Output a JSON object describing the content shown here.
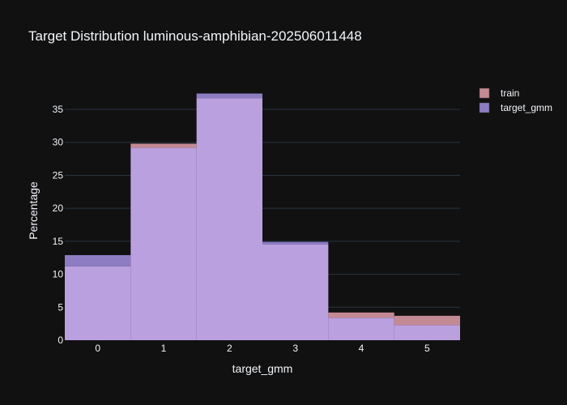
{
  "chart_data": {
    "type": "bar",
    "title": "Target Distribution luminous-amphibian-202506011448",
    "xlabel": "target_gmm",
    "ylabel": "Percentage",
    "categories": [
      "0",
      "1",
      "2",
      "3",
      "4",
      "5"
    ],
    "series": [
      {
        "name": "train",
        "values": [
          11.2,
          29.8,
          36.7,
          14.5,
          4.2,
          3.7
        ],
        "color": "#c48a94"
      },
      {
        "name": "target_gmm",
        "values": [
          12.9,
          29.2,
          37.4,
          14.9,
          3.4,
          2.3
        ],
        "color": "#8e7cc3"
      }
    ],
    "overlap_color": "#bba0e0",
    "yticks": [
      0,
      5,
      10,
      15,
      20,
      25,
      30,
      35
    ],
    "ylim": [
      0,
      39.3
    ],
    "barmode": "overlay",
    "grid": true,
    "legend_position": "top-right"
  }
}
